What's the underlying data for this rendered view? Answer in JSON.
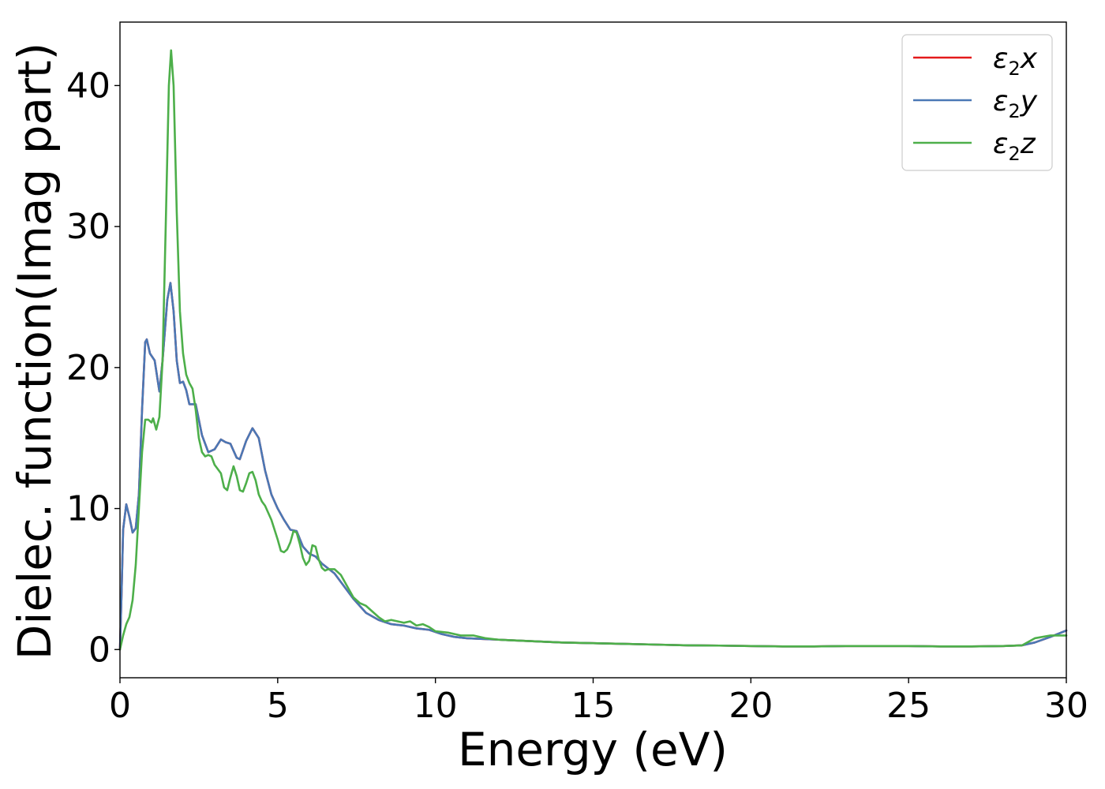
{
  "chart_data": {
    "type": "line",
    "title": "",
    "xlabel": "Energy (eV)",
    "ylabel": "Dielec. function(Imag part)",
    "xlim": [
      0,
      30
    ],
    "ylim": [
      -2,
      44.5
    ],
    "xticks": [
      0,
      5,
      10,
      15,
      20,
      25,
      30
    ],
    "yticks": [
      0,
      10,
      20,
      30,
      40
    ],
    "grid": false,
    "legend_position": "top-right",
    "series": [
      {
        "name": "ε₂x",
        "legend_base": "ε",
        "legend_sub": "2",
        "legend_var": "x",
        "color": "#e41a1c",
        "points": [
          [
            0,
            0
          ],
          [
            0.05,
            4
          ],
          [
            0.1,
            8.5
          ],
          [
            0.2,
            10.3
          ],
          [
            0.3,
            9.4
          ],
          [
            0.4,
            8.3
          ],
          [
            0.5,
            8.6
          ],
          [
            0.6,
            11
          ],
          [
            0.7,
            17
          ],
          [
            0.8,
            21.8
          ],
          [
            0.85,
            22
          ],
          [
            0.95,
            21
          ],
          [
            1.1,
            20.5
          ],
          [
            1.25,
            18.3
          ],
          [
            1.35,
            20.5
          ],
          [
            1.5,
            24.8
          ],
          [
            1.6,
            26
          ],
          [
            1.7,
            24
          ],
          [
            1.8,
            20.5
          ],
          [
            1.9,
            18.9
          ],
          [
            2.0,
            19
          ],
          [
            2.1,
            18.4
          ],
          [
            2.2,
            17.4
          ],
          [
            2.4,
            17.4
          ],
          [
            2.6,
            15.2
          ],
          [
            2.8,
            14
          ],
          [
            3.0,
            14.2
          ],
          [
            3.2,
            14.9
          ],
          [
            3.35,
            14.7
          ],
          [
            3.5,
            14.6
          ],
          [
            3.7,
            13.6
          ],
          [
            3.8,
            13.5
          ],
          [
            4.0,
            14.8
          ],
          [
            4.2,
            15.7
          ],
          [
            4.4,
            15
          ],
          [
            4.6,
            12.7
          ],
          [
            4.8,
            11
          ],
          [
            5.0,
            10
          ],
          [
            5.2,
            9.2
          ],
          [
            5.4,
            8.5
          ],
          [
            5.6,
            8.4
          ],
          [
            5.8,
            7.3
          ],
          [
            6.0,
            6.8
          ],
          [
            6.2,
            6.6
          ],
          [
            6.4,
            6.1
          ],
          [
            6.8,
            5.4
          ],
          [
            7.0,
            4.8
          ],
          [
            7.4,
            3.6
          ],
          [
            7.8,
            2.6
          ],
          [
            8.2,
            2.1
          ],
          [
            8.6,
            1.8
          ],
          [
            9.0,
            1.7
          ],
          [
            9.4,
            1.5
          ],
          [
            9.8,
            1.4
          ],
          [
            10.2,
            1.1
          ],
          [
            10.6,
            0.9
          ],
          [
            11.0,
            0.8
          ],
          [
            12,
            0.7
          ],
          [
            13,
            0.6
          ],
          [
            14,
            0.5
          ],
          [
            15,
            0.45
          ],
          [
            16,
            0.4
          ],
          [
            17,
            0.35
          ],
          [
            18,
            0.3
          ],
          [
            19,
            0.28
          ],
          [
            20,
            0.25
          ],
          [
            21,
            0.22
          ],
          [
            22,
            0.22
          ],
          [
            23,
            0.25
          ],
          [
            24,
            0.25
          ],
          [
            25,
            0.25
          ],
          [
            26,
            0.22
          ],
          [
            27,
            0.22
          ],
          [
            28,
            0.25
          ],
          [
            28.6,
            0.3
          ],
          [
            29,
            0.5
          ],
          [
            29.5,
            0.9
          ],
          [
            30,
            1.35
          ]
        ]
      },
      {
        "name": "ε₂y",
        "legend_base": "ε",
        "legend_sub": "2",
        "legend_var": "y",
        "color": "#4a78b5",
        "points": [
          [
            0,
            0
          ],
          [
            0.05,
            4
          ],
          [
            0.1,
            8.5
          ],
          [
            0.2,
            10.3
          ],
          [
            0.3,
            9.4
          ],
          [
            0.4,
            8.3
          ],
          [
            0.5,
            8.6
          ],
          [
            0.6,
            11
          ],
          [
            0.7,
            17
          ],
          [
            0.8,
            21.8
          ],
          [
            0.85,
            22
          ],
          [
            0.95,
            21
          ],
          [
            1.1,
            20.5
          ],
          [
            1.25,
            18.3
          ],
          [
            1.35,
            20.5
          ],
          [
            1.5,
            24.8
          ],
          [
            1.6,
            26
          ],
          [
            1.7,
            24
          ],
          [
            1.8,
            20.5
          ],
          [
            1.9,
            18.9
          ],
          [
            2.0,
            19
          ],
          [
            2.1,
            18.4
          ],
          [
            2.2,
            17.4
          ],
          [
            2.4,
            17.4
          ],
          [
            2.6,
            15.2
          ],
          [
            2.8,
            14
          ],
          [
            3.0,
            14.2
          ],
          [
            3.2,
            14.9
          ],
          [
            3.35,
            14.7
          ],
          [
            3.5,
            14.6
          ],
          [
            3.7,
            13.6
          ],
          [
            3.8,
            13.5
          ],
          [
            4.0,
            14.8
          ],
          [
            4.2,
            15.7
          ],
          [
            4.4,
            15
          ],
          [
            4.6,
            12.7
          ],
          [
            4.8,
            11
          ],
          [
            5.0,
            10
          ],
          [
            5.2,
            9.2
          ],
          [
            5.4,
            8.5
          ],
          [
            5.6,
            8.4
          ],
          [
            5.8,
            7.3
          ],
          [
            6.0,
            6.8
          ],
          [
            6.2,
            6.6
          ],
          [
            6.4,
            6.1
          ],
          [
            6.8,
            5.4
          ],
          [
            7.0,
            4.8
          ],
          [
            7.4,
            3.6
          ],
          [
            7.8,
            2.6
          ],
          [
            8.2,
            2.1
          ],
          [
            8.6,
            1.8
          ],
          [
            9.0,
            1.7
          ],
          [
            9.4,
            1.5
          ],
          [
            9.8,
            1.4
          ],
          [
            10.2,
            1.1
          ],
          [
            10.6,
            0.9
          ],
          [
            11.0,
            0.8
          ],
          [
            12,
            0.7
          ],
          [
            13,
            0.6
          ],
          [
            14,
            0.5
          ],
          [
            15,
            0.45
          ],
          [
            16,
            0.4
          ],
          [
            17,
            0.35
          ],
          [
            18,
            0.3
          ],
          [
            19,
            0.28
          ],
          [
            20,
            0.25
          ],
          [
            21,
            0.22
          ],
          [
            22,
            0.22
          ],
          [
            23,
            0.25
          ],
          [
            24,
            0.25
          ],
          [
            25,
            0.25
          ],
          [
            26,
            0.22
          ],
          [
            27,
            0.22
          ],
          [
            28,
            0.25
          ],
          [
            28.6,
            0.3
          ],
          [
            29,
            0.5
          ],
          [
            29.5,
            0.9
          ],
          [
            30,
            1.35
          ]
        ]
      },
      {
        "name": "ε₂z",
        "legend_base": "ε",
        "legend_sub": "2",
        "legend_var": "z",
        "color": "#4daf4a",
        "points": [
          [
            0,
            0
          ],
          [
            0.1,
            1
          ],
          [
            0.2,
            1.8
          ],
          [
            0.3,
            2.3
          ],
          [
            0.4,
            3.5
          ],
          [
            0.5,
            6
          ],
          [
            0.6,
            10
          ],
          [
            0.7,
            14
          ],
          [
            0.8,
            16.3
          ],
          [
            0.9,
            16.3
          ],
          [
            1.0,
            16.1
          ],
          [
            1.05,
            16.4
          ],
          [
            1.15,
            15.6
          ],
          [
            1.25,
            16.5
          ],
          [
            1.35,
            20.5
          ],
          [
            1.45,
            30
          ],
          [
            1.55,
            40
          ],
          [
            1.62,
            42.5
          ],
          [
            1.7,
            40
          ],
          [
            1.8,
            31
          ],
          [
            1.9,
            24
          ],
          [
            2.0,
            21
          ],
          [
            2.1,
            19.5
          ],
          [
            2.2,
            18.9
          ],
          [
            2.3,
            18.5
          ],
          [
            2.4,
            17
          ],
          [
            2.5,
            15
          ],
          [
            2.6,
            14
          ],
          [
            2.7,
            13.7
          ],
          [
            2.8,
            13.8
          ],
          [
            2.9,
            13.7
          ],
          [
            3.0,
            13.1
          ],
          [
            3.1,
            12.8
          ],
          [
            3.2,
            12.5
          ],
          [
            3.3,
            11.5
          ],
          [
            3.4,
            11.3
          ],
          [
            3.5,
            12.2
          ],
          [
            3.6,
            13
          ],
          [
            3.7,
            12.3
          ],
          [
            3.8,
            11.3
          ],
          [
            3.9,
            11.2
          ],
          [
            4.0,
            11.8
          ],
          [
            4.1,
            12.5
          ],
          [
            4.2,
            12.6
          ],
          [
            4.3,
            12
          ],
          [
            4.4,
            11
          ],
          [
            4.5,
            10.5
          ],
          [
            4.6,
            10.2
          ],
          [
            4.8,
            9.2
          ],
          [
            5.0,
            7.8
          ],
          [
            5.1,
            7.0
          ],
          [
            5.2,
            6.9
          ],
          [
            5.3,
            7.1
          ],
          [
            5.4,
            7.6
          ],
          [
            5.5,
            8.4
          ],
          [
            5.6,
            8.3
          ],
          [
            5.7,
            7.5
          ],
          [
            5.8,
            6.5
          ],
          [
            5.9,
            6.0
          ],
          [
            6.0,
            6.3
          ],
          [
            6.1,
            7.4
          ],
          [
            6.2,
            7.3
          ],
          [
            6.3,
            6.4
          ],
          [
            6.4,
            5.8
          ],
          [
            6.5,
            5.6
          ],
          [
            6.6,
            5.7
          ],
          [
            6.8,
            5.7
          ],
          [
            7.0,
            5.3
          ],
          [
            7.2,
            4.5
          ],
          [
            7.4,
            3.7
          ],
          [
            7.6,
            3.3
          ],
          [
            7.8,
            3.1
          ],
          [
            8.0,
            2.7
          ],
          [
            8.2,
            2.3
          ],
          [
            8.4,
            2.0
          ],
          [
            8.6,
            2.1
          ],
          [
            8.8,
            2.0
          ],
          [
            9.0,
            1.9
          ],
          [
            9.2,
            2.0
          ],
          [
            9.4,
            1.7
          ],
          [
            9.6,
            1.8
          ],
          [
            9.8,
            1.6
          ],
          [
            10.0,
            1.3
          ],
          [
            10.4,
            1.2
          ],
          [
            10.8,
            1.0
          ],
          [
            11.2,
            1.0
          ],
          [
            11.6,
            0.8
          ],
          [
            12,
            0.7
          ],
          [
            13,
            0.6
          ],
          [
            14,
            0.5
          ],
          [
            15,
            0.45
          ],
          [
            16,
            0.4
          ],
          [
            17,
            0.35
          ],
          [
            18,
            0.3
          ],
          [
            19,
            0.28
          ],
          [
            20,
            0.25
          ],
          [
            21,
            0.22
          ],
          [
            22,
            0.22
          ],
          [
            23,
            0.25
          ],
          [
            24,
            0.25
          ],
          [
            25,
            0.25
          ],
          [
            26,
            0.22
          ],
          [
            27,
            0.22
          ],
          [
            28,
            0.25
          ],
          [
            28.6,
            0.3
          ],
          [
            29,
            0.8
          ],
          [
            29.5,
            1.0
          ],
          [
            30,
            1.0
          ]
        ]
      }
    ]
  }
}
